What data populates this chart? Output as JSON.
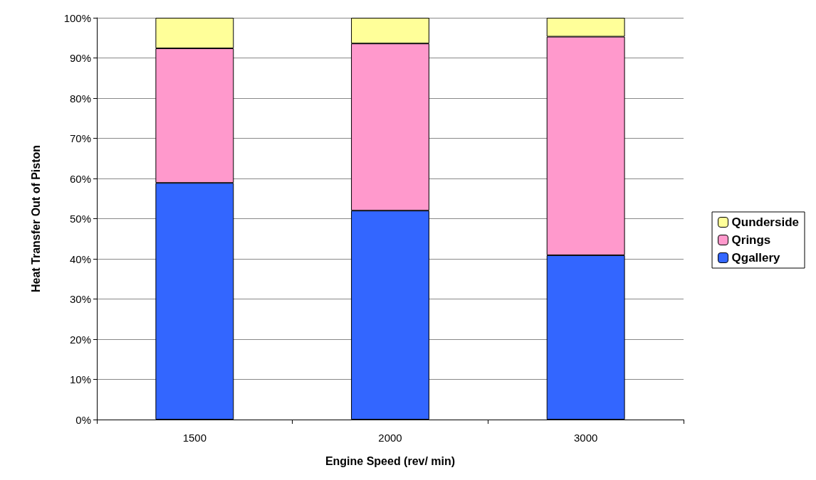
{
  "chart_data": {
    "type": "bar",
    "stacked": true,
    "xlabel": "Engine Speed (rev/ min)",
    "ylabel": "Heat Transfer Out of Piston",
    "categories": [
      "1500",
      "2000",
      "3000"
    ],
    "series": [
      {
        "name": "Qgallery",
        "color": "#3366ff",
        "values": [
          58.9,
          52.0,
          40.9
        ]
      },
      {
        "name": "Qrings",
        "color": "#ff99cc",
        "values": [
          33.5,
          41.6,
          54.4
        ]
      },
      {
        "name": "Qunderside",
        "color": "#ffff99",
        "values": [
          7.6,
          6.4,
          4.7
        ]
      }
    ],
    "ylim": [
      0,
      100
    ],
    "yticks": [
      {
        "value": 0,
        "label": "0%"
      },
      {
        "value": 10,
        "label": "10%"
      },
      {
        "value": 20,
        "label": "20%"
      },
      {
        "value": 30,
        "label": "30%"
      },
      {
        "value": 40,
        "label": "40%"
      },
      {
        "value": 50,
        "label": "50%"
      },
      {
        "value": 60,
        "label": "60%"
      },
      {
        "value": 70,
        "label": "70%"
      },
      {
        "value": 80,
        "label": "80%"
      },
      {
        "value": 90,
        "label": "90%"
      },
      {
        "value": 100,
        "label": "100%"
      }
    ],
    "grid": "y",
    "legend": "right"
  }
}
